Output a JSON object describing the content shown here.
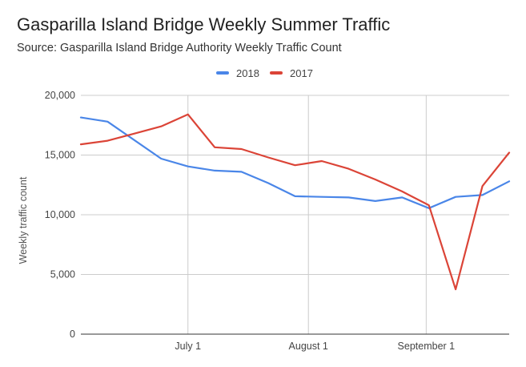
{
  "chart_data": {
    "type": "line",
    "title": "Gasparilla Island Bridge Weekly Summer Traffic",
    "subtitle": "Source: Gasparilla Island Bridge Authority Weekly Traffic Count",
    "ylabel": "Weekly traffic count",
    "xlabel": "",
    "ylim": [
      0,
      20000
    ],
    "yticks": [
      0,
      5000,
      10000,
      15000,
      20000
    ],
    "ytick_labels": [
      "0",
      "5,000",
      "10,000",
      "15,000",
      "20,000"
    ],
    "xticks": [
      {
        "x": 4,
        "label": "July 1"
      },
      {
        "x": 8.5,
        "label": "August 1"
      },
      {
        "x": 12.9,
        "label": "September 1"
      }
    ],
    "xlim": [
      0,
      16
    ],
    "grid": true,
    "legend_position": "top",
    "series": [
      {
        "name": "2018",
        "color": "#4a86e8",
        "x": [
          0,
          1,
          3,
          4,
          5,
          6,
          7,
          8,
          9,
          10,
          11,
          12,
          13,
          14,
          15,
          16
        ],
        "values": [
          18150,
          17800,
          14700,
          14050,
          13700,
          13600,
          12650,
          11550,
          11500,
          11450,
          11150,
          11450,
          10550,
          11500,
          11650,
          12800
        ]
      },
      {
        "name": "2017",
        "color": "#db4437",
        "x": [
          0,
          1,
          2,
          3,
          4,
          5,
          6,
          7,
          8,
          9,
          10,
          11,
          12,
          13,
          14,
          15,
          16
        ],
        "values": [
          15900,
          16200,
          16800,
          17400,
          18400,
          15650,
          15500,
          14800,
          14150,
          14500,
          13850,
          12950,
          11950,
          10800,
          3750,
          12400,
          15200
        ]
      }
    ]
  }
}
